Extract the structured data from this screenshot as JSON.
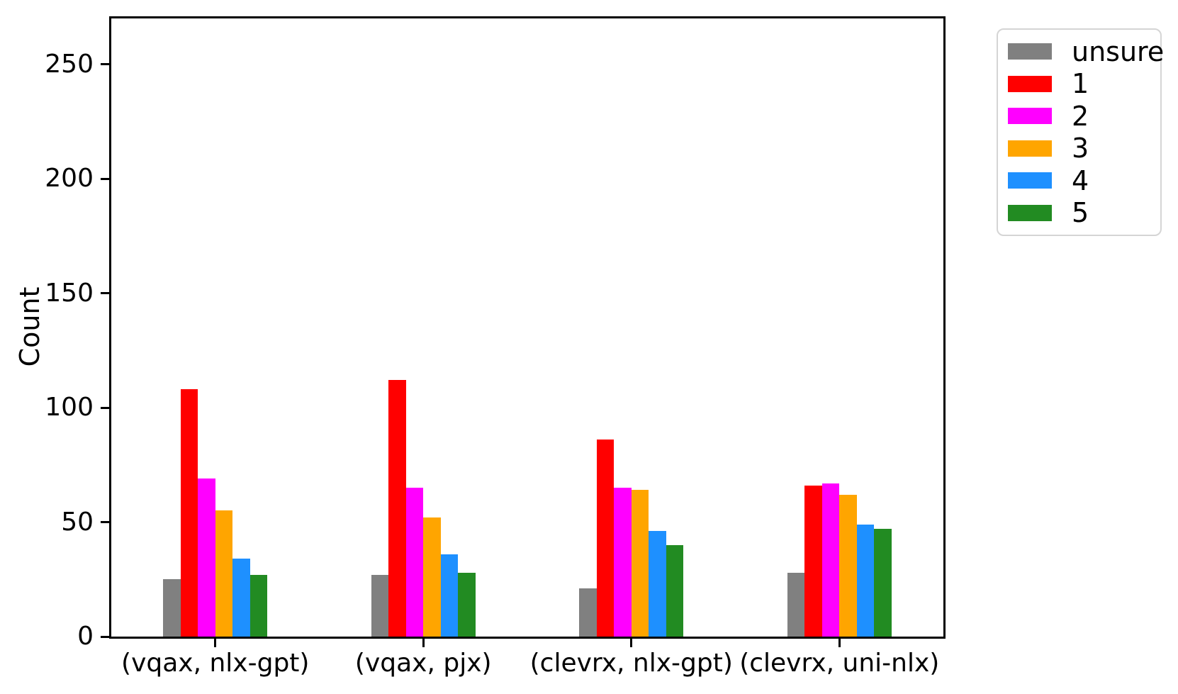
{
  "chart_data": {
    "type": "bar",
    "title": "",
    "xlabel": "",
    "ylabel": "Count",
    "categories": [
      "(vqax, nlx-gpt)",
      "(vqax, pjx)",
      "(clevrx, nlx-gpt)",
      "(clevrx, uni-nlx)"
    ],
    "series": [
      {
        "name": "unsure",
        "color": "#808080",
        "values": [
          25,
          27,
          21,
          28
        ]
      },
      {
        "name": "1",
        "color": "#ff0000",
        "values": [
          108,
          112,
          86,
          66
        ]
      },
      {
        "name": "2",
        "color": "#ff00ff",
        "values": [
          69,
          65,
          65,
          67
        ]
      },
      {
        "name": "3",
        "color": "#ffa500",
        "values": [
          55,
          52,
          64,
          62
        ]
      },
      {
        "name": "4",
        "color": "#1e90ff",
        "values": [
          34,
          36,
          46,
          49
        ]
      },
      {
        "name": "5",
        "color": "#228b22",
        "values": [
          27,
          28,
          40,
          47
        ]
      }
    ],
    "yticks": [
      0,
      50,
      100,
      150,
      200,
      250
    ],
    "ylim": [
      0,
      270
    ],
    "grid": false,
    "legend": {
      "position": "upper-right-outside",
      "entries": [
        "unsure",
        "1",
        "2",
        "3",
        "4",
        "5"
      ]
    }
  }
}
